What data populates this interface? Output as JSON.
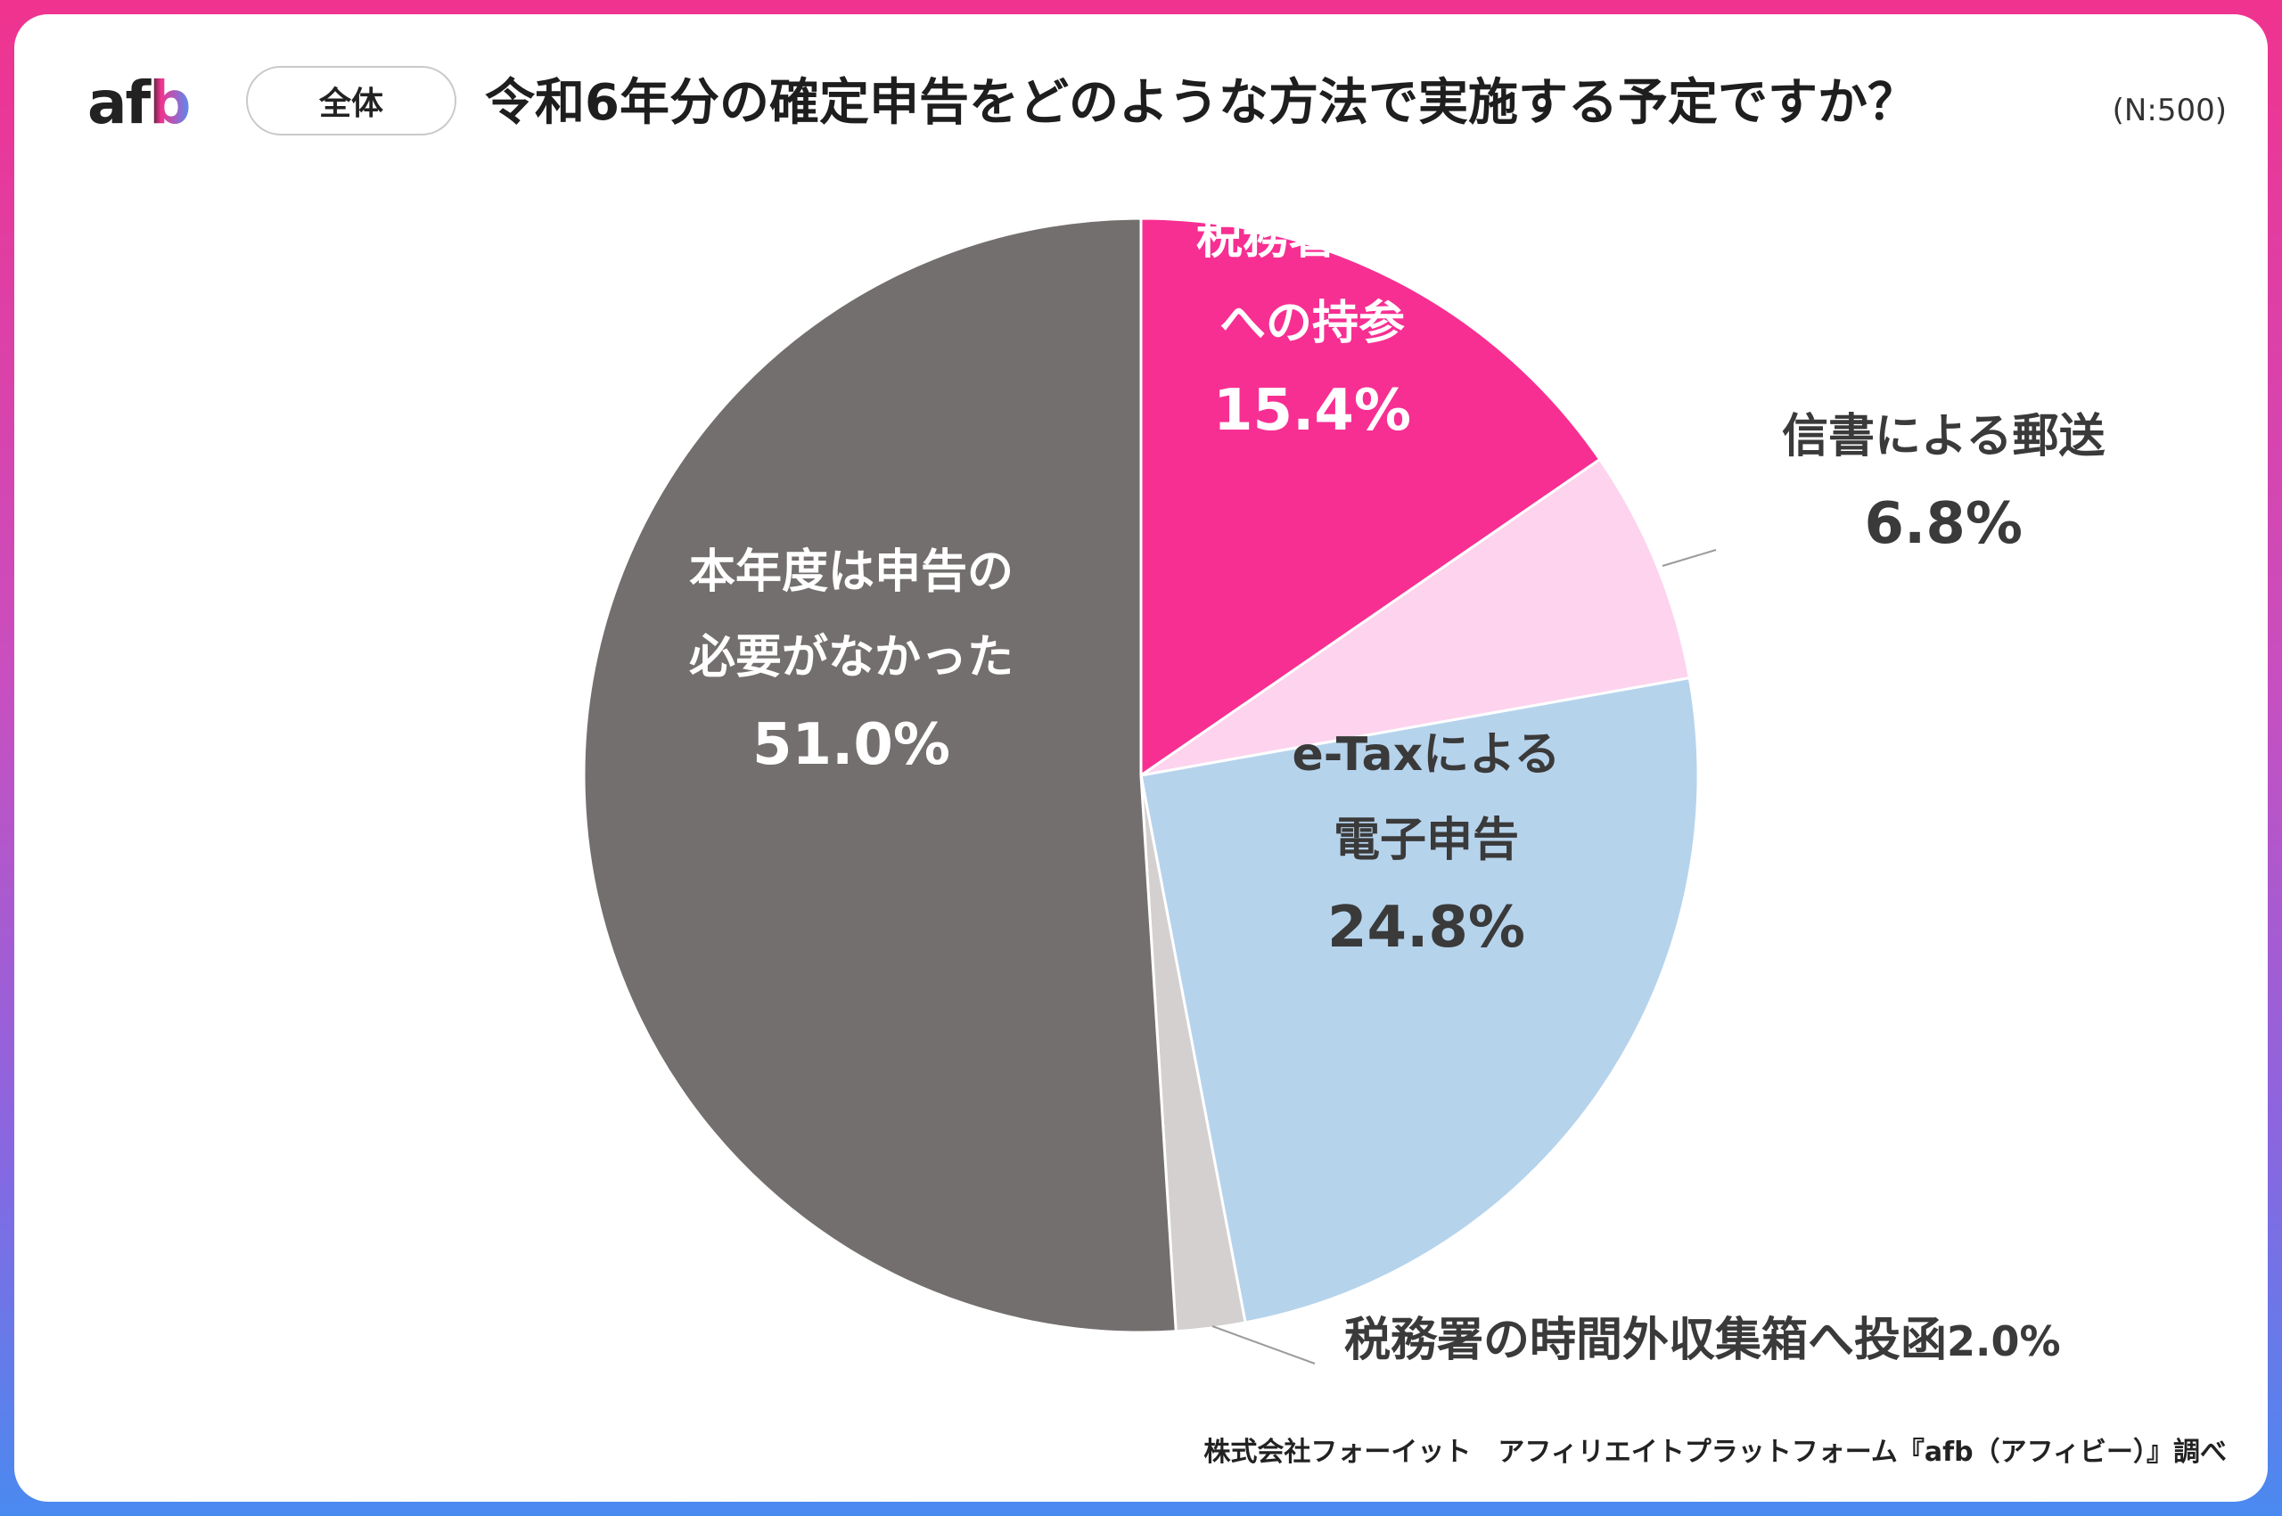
{
  "header": {
    "logo_text": "afb",
    "scope_label": "全体",
    "title": "令和6年分の確定申告をどのような方法で実施する予定ですか？",
    "sample_size": "(N:500)"
  },
  "footer": {
    "source": "株式会社フォーイット　アフィリエイトプラットフォーム『afb（アフィビー）』調べ"
  },
  "chart_data": {
    "type": "pie",
    "title": "令和6年分の確定申告をどのような方法で実施する予定ですか？",
    "start_angle_deg": 0,
    "direction": "clockwise",
    "slices": [
      {
        "label_lines": [
          "税務署窓口",
          "への持参"
        ],
        "label": "税務署窓口への持参",
        "value": 15.4,
        "value_text": "15.4%",
        "color": "#f72f92",
        "text_color": "#ffffff"
      },
      {
        "label_lines": [
          "信書による郵送"
        ],
        "label": "信書による郵送",
        "value": 6.8,
        "value_text": "6.8%",
        "color": "#fdd3ee",
        "text_color": "#3a3a3a"
      },
      {
        "label_lines": [
          "e-Taxによる",
          "電子申告"
        ],
        "label": "e-Taxによる電子申告",
        "value": 24.8,
        "value_text": "24.8%",
        "color": "#b6d3ec",
        "text_color": "#3a3a3a"
      },
      {
        "label_lines": [
          "税務署の時間外収集箱へ投函"
        ],
        "label": "税務署の時間外収集箱へ投函",
        "value": 2.0,
        "value_text": "2.0%",
        "color": "#d4d0d0",
        "text_color": "#3a3a3a"
      },
      {
        "label_lines": [
          "本年度は申告の",
          "必要がなかった"
        ],
        "label": "本年度は申告の必要がなかった",
        "value": 51.0,
        "value_text": "51.0%",
        "color": "#736f6e",
        "text_color": "#ffffff"
      }
    ]
  },
  "colors": {
    "frame_top": "#f0338f",
    "frame_bottom": "#4a8af0",
    "title_text": "#1e1e1e"
  }
}
